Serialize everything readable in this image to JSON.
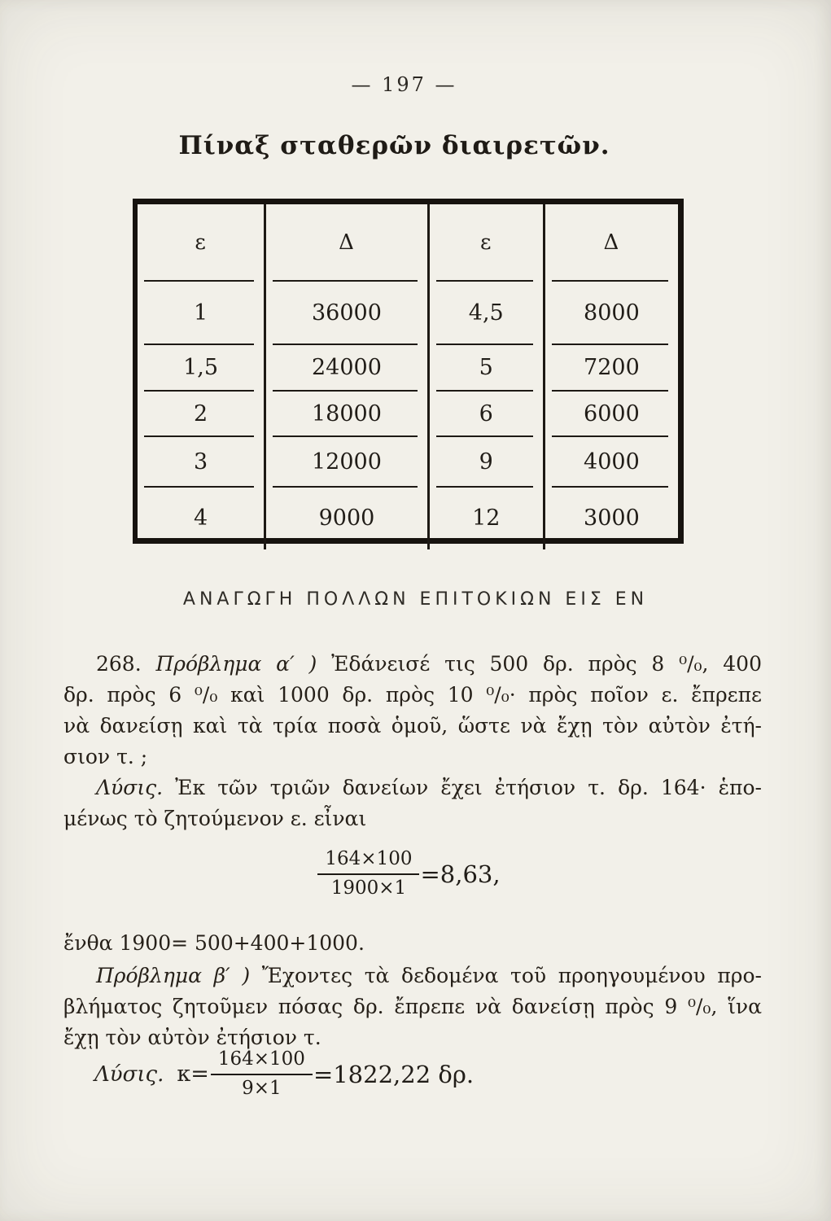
{
  "page": {
    "number_line": "— 197 —",
    "title": "Πίναξ σταθερῶν διαιρετῶν."
  },
  "table": {
    "headers": [
      "ε",
      "Δ",
      "ε",
      "Δ"
    ],
    "rows": [
      [
        "1",
        "36000",
        "4,5",
        "8000"
      ],
      [
        "1,5",
        "24000",
        "5",
        "7200"
      ],
      [
        "2",
        "18000",
        "6",
        "6000"
      ],
      [
        "3",
        "12000",
        "9",
        "4000"
      ],
      [
        "4",
        "9000",
        "12",
        "3000"
      ]
    ]
  },
  "section": {
    "heading": "ΑΝΑΓΩΓΗ ΠΟΛΛΩΝ ΕΠΙΤΟΚΙΩΝ ΕΙΣ ΕΝ"
  },
  "problem_a": {
    "number": "268. ",
    "label": "Πρόβλημα α′ ) ",
    "line1_rest": "Ἐδάνεισέ τις 500 δρ. πρὸς 8 ⁰/₀, 400",
    "line2": "δρ. πρὸς 6 ⁰/₀ καὶ 1000 δρ. πρὸς 10 ⁰/₀· πρὸς ποῖον ε. ἔπρεπε",
    "line3": "νὰ δανείσῃ καὶ τὰ τρία ποσὰ ὁμοῦ, ὥστε νὰ ἔχῃ τὸν αὐτὸν ἐτή-",
    "line4": "σιον τ. ;"
  },
  "solution_a": {
    "label": "Λύσις. ",
    "line1_rest": "Ἐκ τῶν τριῶν δανείων ἔχει ἐτήσιον τ. δρ. 164· ἑπο-",
    "line2": "μένως τὸ ζητούμενον ε. εἶναι"
  },
  "formula_a": {
    "numerator": "164×100",
    "denominator": "1900×1",
    "result": "=8,63,"
  },
  "entha_line": "ἔνθα 1900= 500+400+1000.",
  "problem_b": {
    "label": "Πρόβλημα β′ ) ",
    "line1_rest": "Ἔχοντες τὰ δεδομένα τοῦ προηγουμένου προ-",
    "line2": "βλήματος ζητοῦμεν πόσας δρ. ἔπρεπε νὰ δανείσῃ πρὸς 9 ⁰/₀, ἵνα",
    "line3": "ἔχῃ τὸν αὐτὸν ἐτήσιον τ."
  },
  "solution_b": {
    "label": "Λύσις.",
    "lhs": "κ=",
    "numerator": "164×100",
    "denominator": "9×1",
    "result": "=1822,22 δρ."
  }
}
